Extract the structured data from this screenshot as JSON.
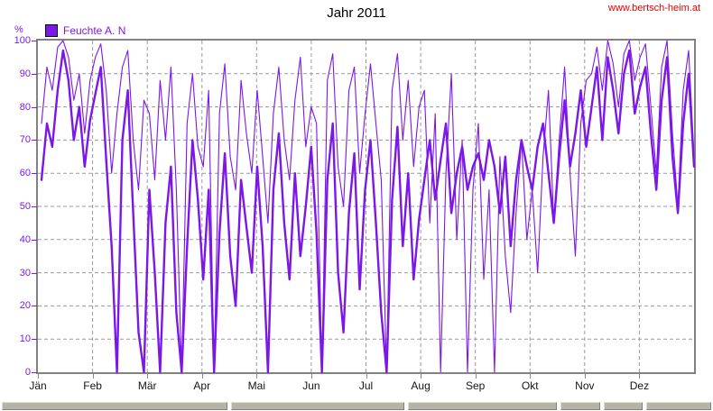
{
  "header": {
    "title": "Jahr 2011",
    "link": "www.bertsch-heim.at"
  },
  "legend": {
    "label": "Feuchte A. N"
  },
  "axes": {
    "y_unit": "%",
    "y_ticks": [
      100,
      90,
      80,
      70,
      60,
      50,
      40,
      30,
      20,
      10,
      0
    ],
    "x_labels": [
      "Jän",
      "Feb",
      "Mär",
      "Apr",
      "Mai",
      "Jun",
      "Jul",
      "Aug",
      "Sep",
      "Okt",
      "Nov",
      "Dez"
    ]
  },
  "colors": {
    "accent_purple": "#7b17e9",
    "grid_gray": "#999999",
    "plot_border_gray": "#828282",
    "x_label_color": "#141414",
    "title_color": "#000000",
    "link_red": "#e60000",
    "status_bar_fill": "#b6b3a7"
  },
  "status_bar": {
    "segments_count": 6
  },
  "chart_data": {
    "type": "line",
    "title": "Jahr 2011",
    "xlabel": "",
    "ylabel": "%",
    "ylim": [
      0,
      100
    ],
    "grid": true,
    "legend_position": "top-left",
    "x_labels": [
      "Jän",
      "Feb",
      "Mär",
      "Apr",
      "Mai",
      "Jun",
      "Jul",
      "Aug",
      "Sep",
      "Okt",
      "Nov",
      "Dez"
    ],
    "x_range_days": [
      1,
      365
    ],
    "x_day_first": 2,
    "x_day_step": 3,
    "series": [
      {
        "name": "Feuchte A. N",
        "style": "thick",
        "color": "#7b17e9",
        "values": [
          58,
          75,
          68,
          85,
          97,
          88,
          70,
          80,
          62,
          76,
          84,
          92,
          64,
          38,
          0,
          70,
          85,
          48,
          12,
          0,
          55,
          30,
          0,
          45,
          62,
          18,
          0,
          38,
          70,
          52,
          28,
          55,
          0,
          42,
          66,
          35,
          20,
          58,
          44,
          30,
          62,
          38,
          0,
          55,
          72,
          45,
          28,
          60,
          35,
          50,
          68,
          42,
          0,
          58,
          75,
          30,
          12,
          48,
          66,
          25,
          55,
          70,
          45,
          18,
          0,
          52,
          74,
          38,
          60,
          28,
          46,
          58,
          70,
          52,
          64,
          75,
          48,
          60,
          68,
          55,
          62,
          66,
          58,
          70,
          62,
          48,
          65,
          38,
          58,
          70,
          62,
          55,
          68,
          75,
          60,
          45,
          65,
          82,
          62,
          72,
          85,
          68,
          80,
          92,
          70,
          95,
          85,
          72,
          90,
          97,
          78,
          86,
          92,
          72,
          55,
          82,
          95,
          65,
          48,
          75,
          90,
          62
        ]
      },
      {
        "name": "Feuchte A. N",
        "style": "thin",
        "color": "#7b17e9",
        "values": [
          75,
          92,
          85,
          98,
          100,
          95,
          82,
          90,
          72,
          88,
          95,
          99,
          85,
          60,
          78,
          92,
          97,
          70,
          55,
          82,
          78,
          58,
          88,
          70,
          92,
          55,
          0,
          75,
          90,
          68,
          62,
          85,
          0,
          78,
          93,
          65,
          55,
          88,
          72,
          60,
          85,
          65,
          45,
          78,
          92,
          70,
          58,
          82,
          95,
          68,
          80,
          75,
          0,
          88,
          96,
          62,
          50,
          85,
          92,
          60,
          78,
          93,
          75,
          58,
          0,
          85,
          96,
          70,
          88,
          62,
          80,
          85,
          45,
          78,
          0,
          60,
          90,
          40,
          70,
          0,
          55,
          75,
          28,
          55,
          0,
          65,
          35,
          18,
          48,
          70,
          40,
          55,
          30,
          65,
          85,
          45,
          70,
          92,
          60,
          35,
          75,
          88,
          90,
          98,
          85,
          100,
          93,
          80,
          96,
          100,
          88,
          95,
          99,
          80,
          60,
          92,
          100,
          72,
          50,
          85,
          97,
          65
        ]
      }
    ]
  }
}
